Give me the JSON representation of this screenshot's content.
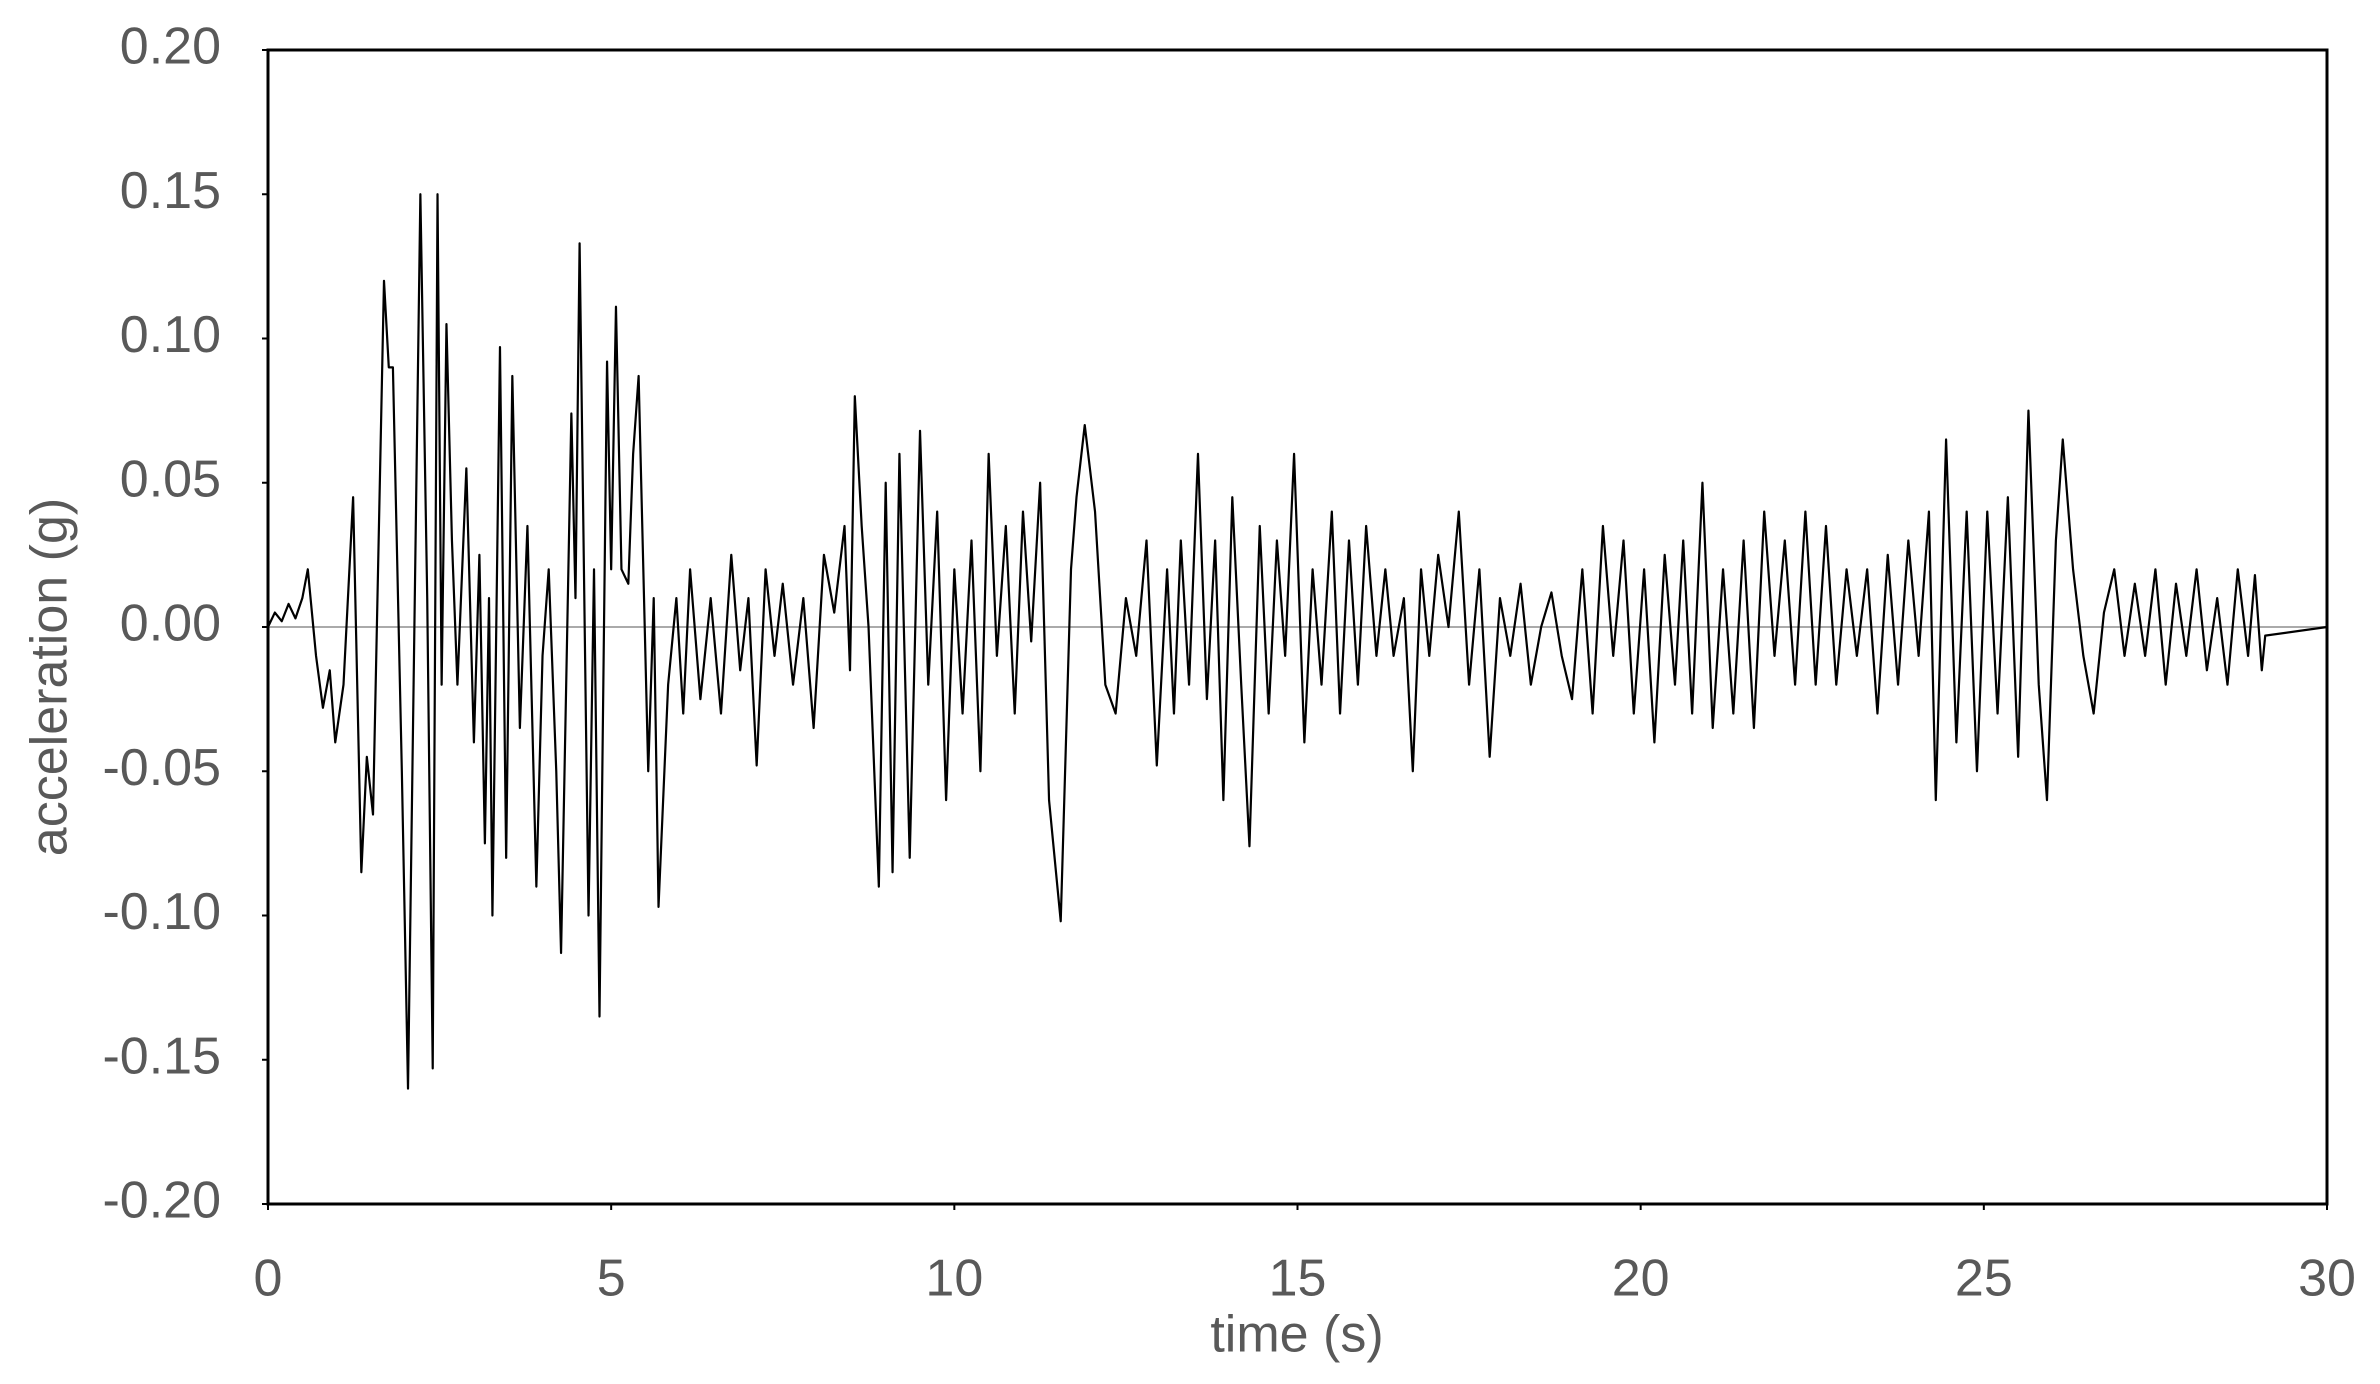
{
  "chart_data": {
    "type": "line",
    "x_label": "time (s)",
    "y_label": "acceleration  (g)",
    "xlim": [
      0,
      30
    ],
    "xticks": [
      0,
      5,
      10,
      15,
      20,
      25,
      30
    ],
    "ylim": [
      -0.2,
      0.2
    ],
    "yticks": [
      {
        "value": -0.2,
        "label": "-0.20"
      },
      {
        "value": -0.15,
        "label": "-0.15"
      },
      {
        "value": -0.1,
        "label": "-0.10"
      },
      {
        "value": -0.05,
        "label": "-0.05"
      },
      {
        "value": 0,
        "label": "0.00"
      },
      {
        "value": 0.05,
        "label": "0.05"
      },
      {
        "value": 0.1,
        "label": "0.10"
      },
      {
        "value": 0.15,
        "label": "0.15"
      },
      {
        "value": 0.2,
        "label": "0.20"
      }
    ],
    "zero_line": true,
    "color": "#000000",
    "x": [
      0,
      0.1,
      0.2,
      0.3,
      0.4,
      0.5,
      0.58,
      0.7,
      0.8,
      0.9,
      0.98,
      1.1,
      1.24,
      1.36,
      1.44,
      1.53,
      1.69,
      1.76,
      1.82,
      1.95,
      2.04,
      2.22,
      2.32,
      2.4,
      2.47,
      2.53,
      2.6,
      2.68,
      2.76,
      2.89,
      3.0,
      3.08,
      3.16,
      3.22,
      3.27,
      3.38,
      3.47,
      3.56,
      3.67,
      3.78,
      3.91,
      4.0,
      4.09,
      4.2,
      4.27,
      4.42,
      4.48,
      4.54,
      4.67,
      4.75,
      4.83,
      4.94,
      5.0,
      5.07,
      5.15,
      5.25,
      5.32,
      5.4,
      5.54,
      5.62,
      5.69,
      5.83,
      5.95,
      6.05,
      6.15,
      6.3,
      6.45,
      6.6,
      6.75,
      6.88,
      7.0,
      7.12,
      7.25,
      7.38,
      7.5,
      7.65,
      7.8,
      7.95,
      8.1,
      8.25,
      8.4,
      8.48,
      8.55,
      8.65,
      8.75,
      8.9,
      9.0,
      9.1,
      9.2,
      9.35,
      9.5,
      9.62,
      9.75,
      9.88,
      10.0,
      10.12,
      10.25,
      10.38,
      10.5,
      10.62,
      10.75,
      10.88,
      11.0,
      11.12,
      11.25,
      11.38,
      11.55,
      11.7,
      11.78,
      11.9,
      12.05,
      12.2,
      12.35,
      12.5,
      12.65,
      12.8,
      12.95,
      13.1,
      13.2,
      13.3,
      13.42,
      13.55,
      13.68,
      13.8,
      13.92,
      14.05,
      14.18,
      14.3,
      14.45,
      14.58,
      14.7,
      14.82,
      14.95,
      15.1,
      15.22,
      15.35,
      15.5,
      15.62,
      15.75,
      15.88,
      16.0,
      16.15,
      16.28,
      16.4,
      16.55,
      16.68,
      16.8,
      16.92,
      17.05,
      17.2,
      17.35,
      17.5,
      17.65,
      17.8,
      17.95,
      18.1,
      18.25,
      18.4,
      18.55,
      18.7,
      18.85,
      19.0,
      19.15,
      19.3,
      19.45,
      19.6,
      19.75,
      19.9,
      20.05,
      20.2,
      20.35,
      20.5,
      20.62,
      20.75,
      20.9,
      21.05,
      21.2,
      21.35,
      21.5,
      21.65,
      21.8,
      21.95,
      22.1,
      22.25,
      22.4,
      22.55,
      22.7,
      22.85,
      23.0,
      23.15,
      23.3,
      23.45,
      23.6,
      23.75,
      23.9,
      24.05,
      24.2,
      24.3,
      24.45,
      24.6,
      24.75,
      24.9,
      25.05,
      25.2,
      25.35,
      25.5,
      25.65,
      25.8,
      25.92,
      26.05,
      26.15,
      26.3,
      26.45,
      26.6,
      26.75,
      26.9,
      27.05,
      27.2,
      27.35,
      27.5,
      27.65,
      27.8,
      27.95,
      28.1,
      28.25,
      28.4,
      28.55,
      28.7,
      28.85,
      28.95,
      29.05,
      29.1,
      30
    ],
    "values": [
      0,
      0.005,
      0.002,
      0.008,
      0.003,
      0.01,
      0.02,
      -0.01,
      -0.028,
      -0.015,
      -0.04,
      -0.02,
      0.045,
      -0.085,
      -0.045,
      -0.065,
      0.12,
      0.09,
      0.09,
      -0.05,
      -0.16,
      0.15,
      0.01,
      -0.153,
      0.15,
      -0.02,
      0.105,
      0.03,
      -0.02,
      0.055,
      -0.04,
      0.025,
      -0.075,
      0.01,
      -0.1,
      0.097,
      -0.08,
      0.087,
      -0.035,
      0.035,
      -0.09,
      -0.01,
      0.02,
      -0.05,
      -0.113,
      0.074,
      0.01,
      0.133,
      -0.1,
      0.02,
      -0.135,
      0.092,
      0.02,
      0.111,
      0.02,
      0.015,
      0.06,
      0.087,
      -0.05,
      0.01,
      -0.097,
      -0.02,
      0.01,
      -0.03,
      0.02,
      -0.025,
      0.01,
      -0.03,
      0.025,
      -0.015,
      0.01,
      -0.048,
      0.02,
      -0.01,
      0.015,
      -0.02,
      0.01,
      -0.035,
      0.025,
      0.005,
      0.035,
      -0.015,
      0.08,
      0.035,
      0,
      -0.09,
      0.05,
      -0.085,
      0.06,
      -0.08,
      0.068,
      -0.02,
      0.04,
      -0.06,
      0.02,
      -0.03,
      0.03,
      -0.05,
      0.06,
      -0.01,
      0.035,
      -0.03,
      0.04,
      -0.005,
      0.05,
      -0.06,
      -0.102,
      0.02,
      0.045,
      0.07,
      0.04,
      -0.02,
      -0.03,
      0.01,
      -0.01,
      0.03,
      -0.048,
      0.02,
      -0.03,
      0.03,
      -0.02,
      0.06,
      -0.025,
      0.03,
      -0.06,
      0.045,
      -0.02,
      -0.076,
      0.035,
      -0.03,
      0.03,
      -0.01,
      0.06,
      -0.04,
      0.02,
      -0.02,
      0.04,
      -0.03,
      0.03,
      -0.02,
      0.035,
      -0.01,
      0.02,
      -0.01,
      0.01,
      -0.05,
      0.02,
      -0.01,
      0.025,
      0,
      0.04,
      -0.02,
      0.02,
      -0.045,
      0.01,
      -0.01,
      0.015,
      -0.02,
      0,
      0.012,
      -0.01,
      -0.025,
      0.02,
      -0.03,
      0.035,
      -0.01,
      0.03,
      -0.03,
      0.02,
      -0.04,
      0.025,
      -0.02,
      0.03,
      -0.03,
      0.05,
      -0.035,
      0.02,
      -0.03,
      0.03,
      -0.035,
      0.04,
      -0.01,
      0.03,
      -0.02,
      0.04,
      -0.02,
      0.035,
      -0.02,
      0.02,
      -0.01,
      0.02,
      -0.03,
      0.025,
      -0.02,
      0.03,
      -0.01,
      0.04,
      -0.06,
      0.065,
      -0.04,
      0.04,
      -0.05,
      0.04,
      -0.03,
      0.045,
      -0.045,
      0.075,
      -0.02,
      -0.06,
      0.03,
      0.065,
      0.02,
      -0.01,
      -0.03,
      0.005,
      0.02,
      -0.01,
      0.015,
      -0.01,
      0.02,
      -0.02,
      0.015,
      -0.01,
      0.02,
      -0.015,
      0.01,
      -0.02,
      0.02,
      -0.01,
      0.018,
      -0.015,
      -0.003,
      0
    ]
  }
}
